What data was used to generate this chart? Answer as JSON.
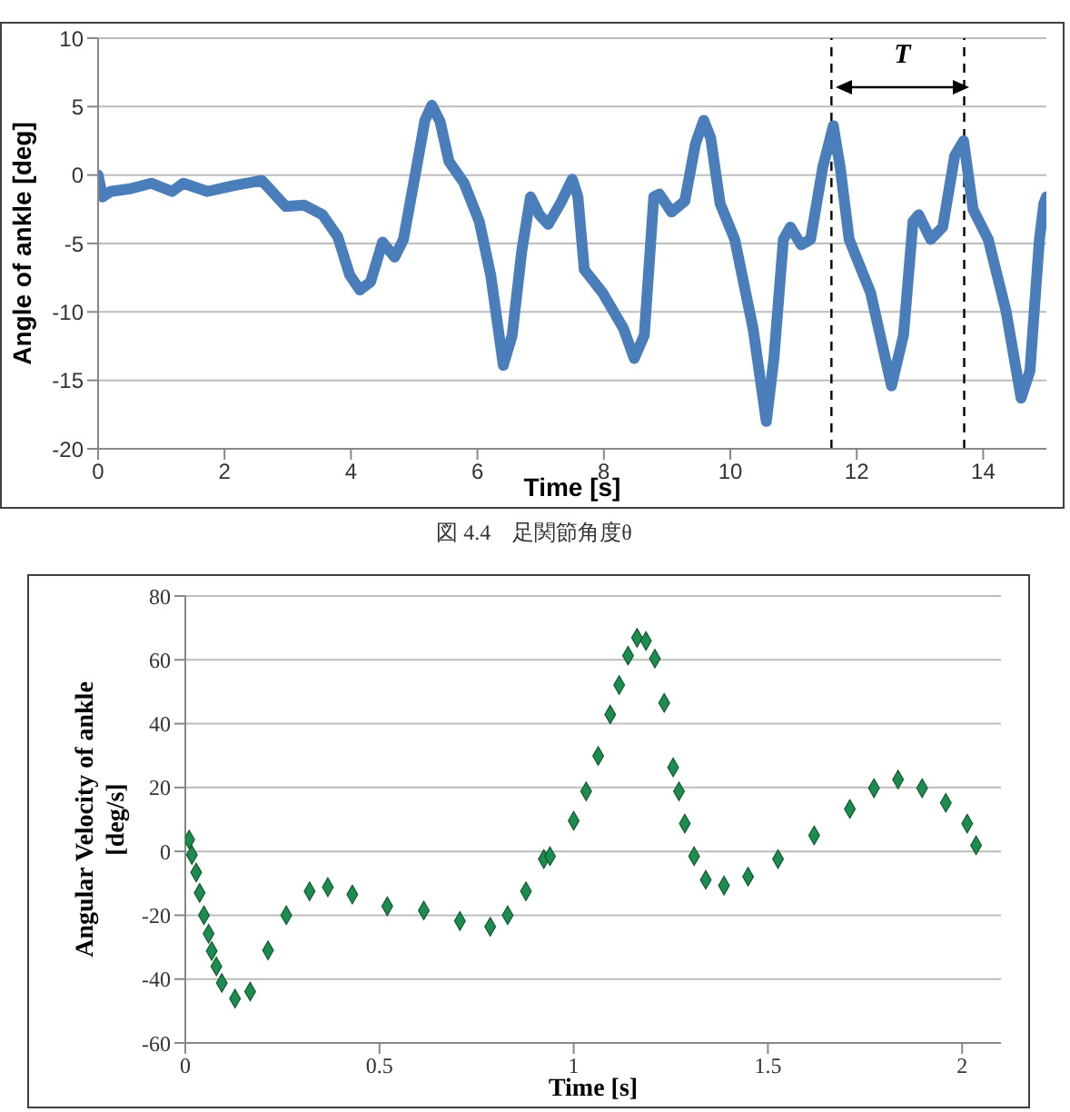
{
  "chart_data": [
    {
      "type": "line",
      "xlabel": "Time [s]",
      "ylabel": "Angle of ankle [deg]",
      "xlim": [
        0,
        15
      ],
      "ylim": [
        -20,
        10
      ],
      "xticks": [
        0,
        2,
        4,
        6,
        8,
        10,
        12,
        14
      ],
      "yticks": [
        -20,
        -15,
        -10,
        -5,
        0,
        5,
        10
      ],
      "grid": "y",
      "marker": "none",
      "x": [
        0,
        0.07,
        0.2,
        0.51,
        0.84,
        1.17,
        1.35,
        1.73,
        2.12,
        2.59,
        2.97,
        3.26,
        3.55,
        3.79,
        3.98,
        4.14,
        4.31,
        4.5,
        4.69,
        4.83,
        5.07,
        5.17,
        5.28,
        5.41,
        5.55,
        5.79,
        6.03,
        6.21,
        6.41,
        6.55,
        6.7,
        6.84,
        6.98,
        7.12,
        7.31,
        7.5,
        7.59,
        7.69,
        7.98,
        8.31,
        8.48,
        8.64,
        8.79,
        8.88,
        9.07,
        9.28,
        9.45,
        9.58,
        9.69,
        9.84,
        10.07,
        10.36,
        10.57,
        10.69,
        10.84,
        10.95,
        11.12,
        11.27,
        11.46,
        11.63,
        11.74,
        11.88,
        12.22,
        12.55,
        12.74,
        12.89,
        12.98,
        13.17,
        13.36,
        13.55,
        13.69,
        13.84,
        14.08,
        14.36,
        14.6,
        14.74,
        14.89,
        14.96,
        15
      ],
      "series": [
        {
          "color": "#4a7ebb",
          "values": [
            0,
            -1.6,
            -1.2,
            -1,
            -0.6,
            -1.2,
            -0.6,
            -1.2,
            -0.8,
            -0.4,
            -2.3,
            -2.2,
            -2.9,
            -4.5,
            -7.3,
            -8.4,
            -7.8,
            -4.9,
            -6,
            -4.7,
            1.4,
            4,
            5.1,
            3.9,
            1,
            -0.6,
            -3.4,
            -7.3,
            -13.9,
            -11.7,
            -5.6,
            -1.6,
            -2.9,
            -3.6,
            -2.1,
            -0.3,
            -1.6,
            -6.9,
            -8.6,
            -11.2,
            -13.4,
            -11.7,
            -1.6,
            -1.4,
            -2.7,
            -1.9,
            2.3,
            4,
            2.7,
            -2.1,
            -4.7,
            -11.2,
            -18,
            -13.4,
            -4.7,
            -3.8,
            -5.1,
            -4.7,
            0.5,
            3.6,
            0.5,
            -4.7,
            -8.6,
            -15.4,
            -11.7,
            -3.4,
            -2.9,
            -4.7,
            -3.8,
            1.4,
            2.5,
            -2.5,
            -4.7,
            -9.9,
            -16.3,
            -14.3,
            -4.7,
            -2.1,
            -1.6
          ]
        }
      ],
      "ref_lines": [
        {
          "axis": "x",
          "value": 11.6,
          "color": "#000000",
          "line_style": "dashed"
        },
        {
          "axis": "x",
          "value": 13.7,
          "color": "#000000",
          "line_style": "dashed"
        }
      ],
      "annotations": [
        "T",
        "図 4.4　足関節角度θ"
      ]
    },
    {
      "type": "scatter",
      "xlabel": "Time [s]",
      "ylabel": "Angular Velocity of ankle [deg/s]",
      "xlim": [
        0,
        2.1
      ],
      "ylim": [
        -60,
        80
      ],
      "xticks": [
        0,
        0.5,
        1,
        1.5,
        2
      ],
      "yticks": [
        -60,
        -40,
        -20,
        0,
        20,
        40,
        60,
        80
      ],
      "grid": "y",
      "marker": "diamond",
      "x": [
        0.01,
        0.017,
        0.028,
        0.037,
        0.048,
        0.06,
        0.068,
        0.08,
        0.094,
        0.128,
        0.167,
        0.213,
        0.26,
        0.32,
        0.367,
        0.43,
        0.52,
        0.614,
        0.707,
        0.785,
        0.83,
        0.877,
        0.923,
        0.939,
        1.0,
        1.032,
        1.063,
        1.094,
        1.117,
        1.14,
        1.163,
        1.186,
        1.209,
        1.233,
        1.256,
        1.271,
        1.286,
        1.31,
        1.34,
        1.387,
        1.449,
        1.526,
        1.619,
        1.711,
        1.773,
        1.835,
        1.897,
        1.958,
        2.013,
        2.036
      ],
      "series": [
        {
          "color": "#1e8c4e",
          "values": [
            3.7,
            -1.1,
            -6.6,
            -13,
            -20,
            -25.8,
            -31.2,
            -36,
            -41.2,
            -46.1,
            -43.9,
            -31,
            -20,
            -12.5,
            -11.2,
            -13.5,
            -17.2,
            -18.5,
            -21.8,
            -23.6,
            -20,
            -12.5,
            -2.4,
            -1.5,
            9.6,
            18.8,
            29.9,
            42.9,
            52.1,
            61.3,
            66.9,
            65.9,
            60.4,
            46.5,
            26.3,
            18.8,
            8.7,
            -1.5,
            -8.9,
            -10.7,
            -7.9,
            -2.4,
            5,
            13.3,
            19.8,
            22.5,
            19.8,
            15.2,
            8.7,
            1.9
          ]
        }
      ]
    }
  ]
}
